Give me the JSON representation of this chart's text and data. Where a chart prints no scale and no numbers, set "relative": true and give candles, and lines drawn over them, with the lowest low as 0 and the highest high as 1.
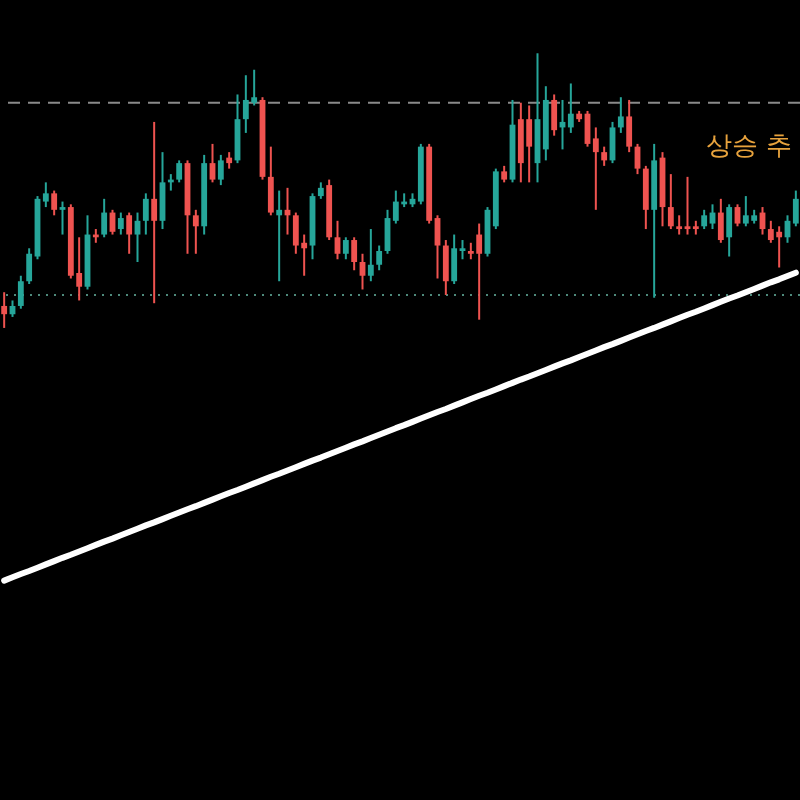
{
  "chart_data": {
    "type": "candlestick",
    "relative": true,
    "categories": [
      null,
      null,
      null,
      null,
      null,
      null,
      null,
      null,
      null,
      null,
      null,
      null,
      null,
      null,
      null,
      null,
      null,
      null,
      null,
      null,
      null,
      null,
      null,
      null,
      null,
      null,
      null,
      null,
      null,
      null,
      null,
      null,
      null,
      null,
      null,
      null,
      null,
      null,
      null,
      null,
      null,
      null,
      null,
      null,
      null,
      null,
      null,
      null,
      null,
      null,
      null,
      null,
      null,
      null,
      null,
      null,
      null,
      null,
      null,
      null,
      null,
      null,
      null,
      null,
      null,
      null,
      null,
      null,
      null,
      null,
      null,
      null,
      null,
      null,
      null,
      null,
      null,
      null,
      null,
      null,
      null,
      null,
      null,
      null,
      null,
      null,
      null,
      null,
      null,
      null,
      null,
      null,
      null,
      null,
      null,
      null
    ],
    "ohlc": [
      [
        0.08,
        0.13,
        0.0,
        0.05
      ],
      [
        0.05,
        0.1,
        0.04,
        0.08
      ],
      [
        0.08,
        0.19,
        0.07,
        0.17
      ],
      [
        0.17,
        0.29,
        0.16,
        0.27
      ],
      [
        0.26,
        0.48,
        0.25,
        0.47
      ],
      [
        0.46,
        0.53,
        0.44,
        0.49
      ],
      [
        0.49,
        0.5,
        0.41,
        0.43
      ],
      [
        0.43,
        0.46,
        0.34,
        0.44
      ],
      [
        0.44,
        0.45,
        0.18,
        0.19
      ],
      [
        0.2,
        0.33,
        0.1,
        0.15
      ],
      [
        0.15,
        0.41,
        0.14,
        0.34
      ],
      [
        0.34,
        0.36,
        0.31,
        0.33
      ],
      [
        0.34,
        0.47,
        0.33,
        0.42
      ],
      [
        0.42,
        0.43,
        0.34,
        0.35
      ],
      [
        0.36,
        0.42,
        0.34,
        0.4
      ],
      [
        0.41,
        0.42,
        0.27,
        0.34
      ],
      [
        0.34,
        0.42,
        0.24,
        0.39
      ],
      [
        0.39,
        0.49,
        0.34,
        0.47
      ],
      [
        0.47,
        0.75,
        0.09,
        0.39
      ],
      [
        0.39,
        0.64,
        0.36,
        0.53
      ],
      [
        0.53,
        0.56,
        0.5,
        0.54
      ],
      [
        0.54,
        0.61,
        0.53,
        0.6
      ],
      [
        0.6,
        0.61,
        0.27,
        0.41
      ],
      [
        0.41,
        0.43,
        0.27,
        0.37
      ],
      [
        0.37,
        0.63,
        0.34,
        0.6
      ],
      [
        0.6,
        0.67,
        0.53,
        0.54
      ],
      [
        0.54,
        0.63,
        0.52,
        0.61
      ],
      [
        0.62,
        0.64,
        0.58,
        0.6
      ],
      [
        0.61,
        0.85,
        0.6,
        0.76
      ],
      [
        0.76,
        0.92,
        0.71,
        0.83
      ],
      [
        0.82,
        0.94,
        0.81,
        0.84
      ],
      [
        0.83,
        0.84,
        0.54,
        0.55
      ],
      [
        0.55,
        0.66,
        0.41,
        0.42
      ],
      [
        0.41,
        0.5,
        0.17,
        0.43
      ],
      [
        0.43,
        0.51,
        0.34,
        0.41
      ],
      [
        0.41,
        0.42,
        0.27,
        0.3
      ],
      [
        0.31,
        0.34,
        0.19,
        0.29
      ],
      [
        0.3,
        0.49,
        0.25,
        0.48
      ],
      [
        0.48,
        0.53,
        0.47,
        0.51
      ],
      [
        0.52,
        0.54,
        0.32,
        0.33
      ],
      [
        0.33,
        0.39,
        0.25,
        0.27
      ],
      [
        0.27,
        0.33,
        0.25,
        0.32
      ],
      [
        0.32,
        0.33,
        0.21,
        0.24
      ],
      [
        0.24,
        0.27,
        0.14,
        0.19
      ],
      [
        0.19,
        0.36,
        0.17,
        0.23
      ],
      [
        0.23,
        0.3,
        0.21,
        0.28
      ],
      [
        0.28,
        0.43,
        0.27,
        0.4
      ],
      [
        0.39,
        0.5,
        0.38,
        0.46
      ],
      [
        0.45,
        0.49,
        0.44,
        0.46
      ],
      [
        0.45,
        0.49,
        0.44,
        0.47
      ],
      [
        0.46,
        0.67,
        0.45,
        0.66
      ],
      [
        0.66,
        0.67,
        0.38,
        0.39
      ],
      [
        0.4,
        0.41,
        0.18,
        0.3
      ],
      [
        0.3,
        0.32,
        0.12,
        0.17
      ],
      [
        0.17,
        0.34,
        0.16,
        0.29
      ],
      [
        0.28,
        0.32,
        0.25,
        0.29
      ],
      [
        0.28,
        0.31,
        0.25,
        0.27
      ],
      [
        0.34,
        0.38,
        0.03,
        0.27
      ],
      [
        0.27,
        0.44,
        0.26,
        0.43
      ],
      [
        0.37,
        0.58,
        0.36,
        0.57
      ],
      [
        0.57,
        0.59,
        0.53,
        0.54
      ],
      [
        0.54,
        0.83,
        0.53,
        0.74
      ],
      [
        0.76,
        0.82,
        0.53,
        0.6
      ],
      [
        0.76,
        0.81,
        0.53,
        0.66
      ],
      [
        0.6,
        1.0,
        0.53,
        0.76
      ],
      [
        0.65,
        0.88,
        0.61,
        0.83
      ],
      [
        0.83,
        0.85,
        0.7,
        0.72
      ],
      [
        0.73,
        0.83,
        0.65,
        0.75
      ],
      [
        0.73,
        0.89,
        0.71,
        0.78
      ],
      [
        0.78,
        0.79,
        0.75,
        0.76
      ],
      [
        0.78,
        0.79,
        0.66,
        0.67
      ],
      [
        0.69,
        0.73,
        0.43,
        0.64
      ],
      [
        0.64,
        0.66,
        0.59,
        0.61
      ],
      [
        0.61,
        0.75,
        0.6,
        0.73
      ],
      [
        0.73,
        0.84,
        0.71,
        0.77
      ],
      [
        0.77,
        0.83,
        0.64,
        0.66
      ],
      [
        0.66,
        0.67,
        0.56,
        0.58
      ],
      [
        0.58,
        0.59,
        0.36,
        0.43
      ],
      [
        0.43,
        0.67,
        0.11,
        0.61
      ],
      [
        0.62,
        0.64,
        0.37,
        0.44
      ],
      [
        0.44,
        0.56,
        0.36,
        0.37
      ],
      [
        0.37,
        0.41,
        0.34,
        0.36
      ],
      [
        0.37,
        0.55,
        0.34,
        0.36
      ],
      [
        0.37,
        0.39,
        0.34,
        0.36
      ],
      [
        0.37,
        0.43,
        0.36,
        0.41
      ],
      [
        0.38,
        0.45,
        0.36,
        0.42
      ],
      [
        0.42,
        0.47,
        0.31,
        0.32
      ],
      [
        0.33,
        0.45,
        0.26,
        0.44
      ],
      [
        0.44,
        0.45,
        0.37,
        0.38
      ],
      [
        0.38,
        0.48,
        0.37,
        0.41
      ],
      [
        0.39,
        0.43,
        0.38,
        0.41
      ],
      [
        0.42,
        0.44,
        0.34,
        0.36
      ],
      [
        0.36,
        0.39,
        0.31,
        0.32
      ],
      [
        0.35,
        0.37,
        0.22,
        0.33
      ],
      [
        0.33,
        0.41,
        0.31,
        0.39
      ],
      [
        0.38,
        0.5,
        0.37,
        0.47
      ]
    ],
    "colors": [
      "#ef5350",
      "#26a69a",
      "#26a69a",
      "#26a69a",
      "#26a69a",
      "#26a69a",
      "#ef5350",
      "#26a69a",
      "#ef5350",
      "#ef5350",
      "#26a69a",
      "#ef5350",
      "#26a69a",
      "#ef5350",
      "#26a69a",
      "#ef5350",
      "#26a69a",
      "#26a69a",
      "#ef5350",
      "#26a69a",
      "#26a69a",
      "#26a69a",
      "#ef5350",
      "#ef5350",
      "#26a69a",
      "#ef5350",
      "#26a69a",
      "#ef5350",
      "#26a69a",
      "#26a69a",
      "#26a69a",
      "#ef5350",
      "#ef5350",
      "#26a69a",
      "#ef5350",
      "#ef5350",
      "#ef5350",
      "#26a69a",
      "#26a69a",
      "#ef5350",
      "#ef5350",
      "#26a69a",
      "#ef5350",
      "#ef5350",
      "#26a69a",
      "#26a69a",
      "#26a69a",
      "#26a69a",
      "#26a69a",
      "#26a69a",
      "#26a69a",
      "#ef5350",
      "#ef5350",
      "#ef5350",
      "#26a69a",
      "#26a69a",
      "#ef5350",
      "#ef5350",
      "#26a69a",
      "#26a69a",
      "#ef5350",
      "#26a69a",
      "#ef5350",
      "#ef5350",
      "#26a69a",
      "#26a69a",
      "#ef5350",
      "#26a69a",
      "#26a69a",
      "#ef5350",
      "#ef5350",
      "#ef5350",
      "#ef5350",
      "#26a69a",
      "#26a69a",
      "#ef5350",
      "#ef5350",
      "#ef5350",
      "#26a69a",
      "#ef5350",
      "#ef5350",
      "#ef5350",
      "#ef5350",
      "#ef5350",
      "#26a69a",
      "#26a69a",
      "#ef5350",
      "#26a69a",
      "#ef5350",
      "#26a69a",
      "#26a69a",
      "#ef5350",
      "#ef5350",
      "#ef5350",
      "#26a69a",
      "#26a69a"
    ],
    "series": [
      {
        "type": "line",
        "color": "#ffffff",
        "line_style": "solid",
        "values": [
          -0.92,
          -0.908,
          -0.896,
          -0.885,
          -0.873,
          -0.861,
          -0.849,
          -0.837,
          -0.826,
          -0.814,
          -0.802,
          -0.79,
          -0.778,
          -0.767,
          -0.755,
          -0.743,
          -0.731,
          -0.719,
          -0.708,
          -0.696,
          -0.684,
          -0.672,
          -0.66,
          -0.649,
          -0.637,
          -0.625,
          -0.613,
          -0.601,
          -0.59,
          -0.578,
          -0.566,
          -0.554,
          -0.542,
          -0.531,
          -0.519,
          -0.507,
          -0.495,
          -0.483,
          -0.472,
          -0.46,
          -0.448,
          -0.436,
          -0.424,
          -0.413,
          -0.401,
          -0.389,
          -0.377,
          -0.365,
          -0.354,
          -0.342,
          -0.33,
          -0.318,
          -0.306,
          -0.295,
          -0.283,
          -0.271,
          -0.259,
          -0.247,
          -0.236,
          -0.224,
          -0.212,
          -0.2,
          -0.188,
          -0.177,
          -0.165,
          -0.153,
          -0.141,
          -0.129,
          -0.118,
          -0.106,
          -0.094,
          -0.082,
          -0.07,
          -0.059,
          -0.047,
          -0.035,
          -0.023,
          -0.011,
          0.0,
          0.012,
          0.024,
          0.036,
          0.048,
          0.059,
          0.071,
          0.083,
          0.095,
          0.107,
          0.118,
          0.13,
          0.142,
          0.154,
          0.166,
          0.177,
          0.189,
          0.201
        ]
      }
    ],
    "ref_lines": [
      {
        "axis": "y",
        "value": 0.82,
        "color": "#8a8a8a",
        "line_style": "dashed"
      },
      {
        "axis": "y",
        "value": 0.12,
        "color": "#4e8a7c",
        "line_style": "dotted"
      }
    ],
    "annotations": [
      "상승 추"
    ]
  }
}
